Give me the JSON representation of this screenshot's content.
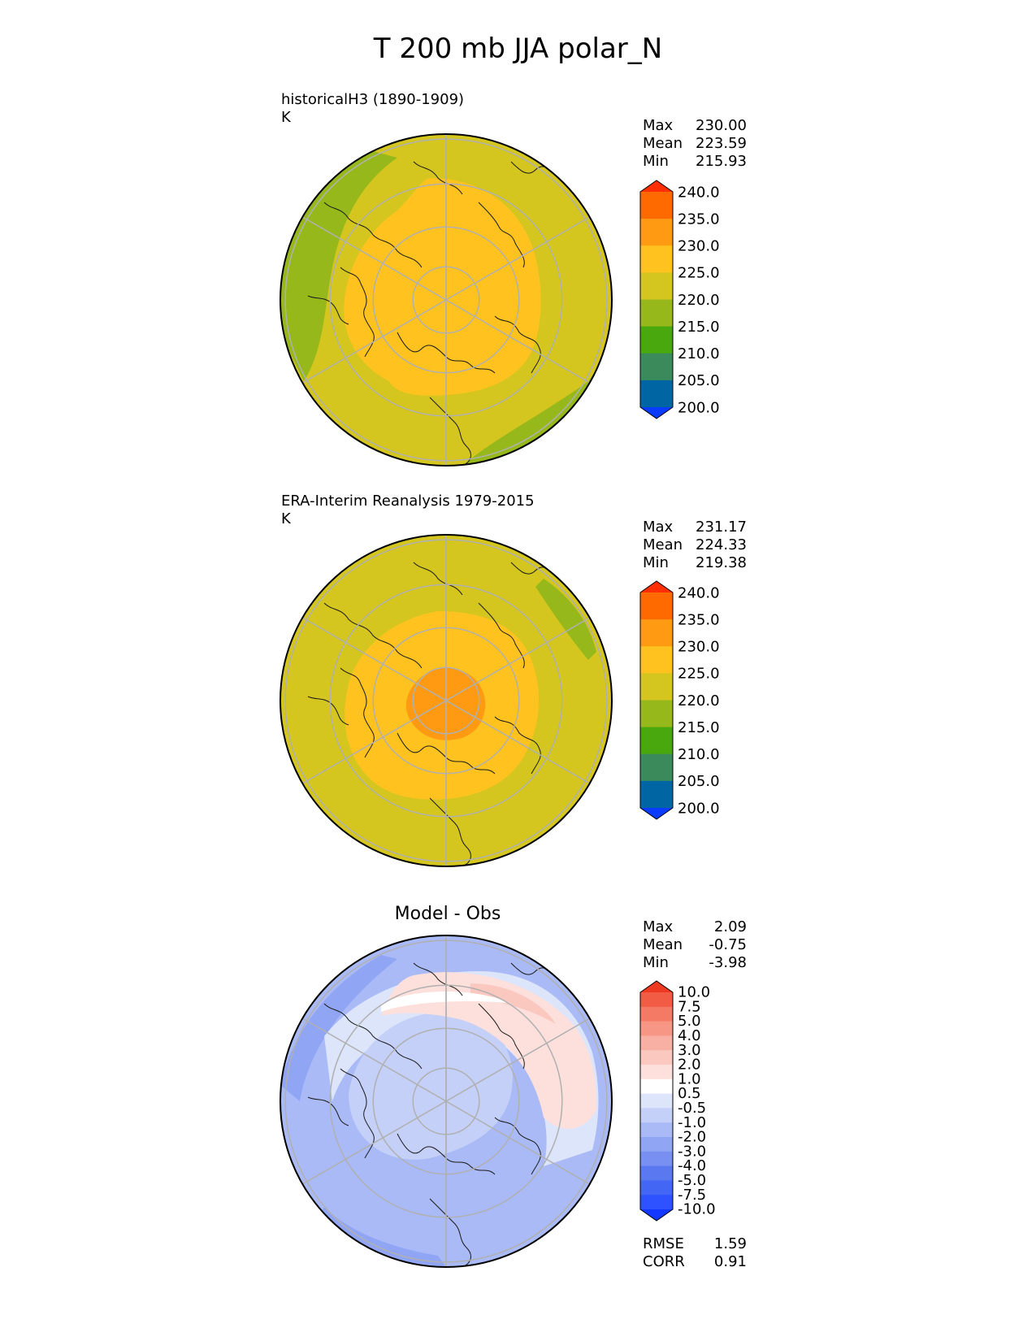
{
  "title": "T 200 mb JJA polar_N",
  "panels": [
    {
      "caption_line1": "historicalH3 (1890-1909)",
      "caption_line2": "K",
      "stats": [
        {
          "label": "Max",
          "value": "230.00"
        },
        {
          "label": "Mean",
          "value": "223.59"
        },
        {
          "label": "Min",
          "value": "215.93"
        }
      ]
    },
    {
      "caption_line1": "ERA-Interim Reanalysis 1979-2015",
      "caption_line2": "K",
      "stats": [
        {
          "label": "Max",
          "value": "231.17"
        },
        {
          "label": "Mean",
          "value": "224.33"
        },
        {
          "label": "Min",
          "value": "219.38"
        }
      ]
    },
    {
      "title": "Model - Obs",
      "stats": [
        {
          "label": "Max",
          "value": "2.09"
        },
        {
          "label": "Mean",
          "value": "-0.75"
        },
        {
          "label": "Min",
          "value": "-3.98"
        }
      ],
      "metrics": [
        {
          "label": "RMSE",
          "value": "1.59"
        },
        {
          "label": "CORR",
          "value": "0.91"
        }
      ]
    }
  ],
  "chart_data": [
    {
      "type": "heatmap",
      "projection": "north polar stereographic",
      "units": "K",
      "colorbar": {
        "levels": [
          "200.0",
          "205.0",
          "210.0",
          "215.0",
          "220.0",
          "225.0",
          "230.0",
          "235.0",
          "240.0"
        ],
        "colors": [
          "#0a3cff",
          "#0066a3",
          "#3a8a5c",
          "#4aa80f",
          "#96b81b",
          "#d4c61f",
          "#ffc21f",
          "#ff9a12",
          "#ff6a00",
          "#ff2e05"
        ],
        "extend": "both"
      },
      "field_summary": {
        "max": 230.0,
        "mean": 223.59,
        "min": 215.93
      }
    },
    {
      "type": "heatmap",
      "projection": "north polar stereographic",
      "units": "K",
      "colorbar": {
        "levels": [
          "200.0",
          "205.0",
          "210.0",
          "215.0",
          "220.0",
          "225.0",
          "230.0",
          "235.0",
          "240.0"
        ],
        "colors": [
          "#0a3cff",
          "#0066a3",
          "#3a8a5c",
          "#4aa80f",
          "#96b81b",
          "#d4c61f",
          "#ffc21f",
          "#ff9a12",
          "#ff6a00",
          "#ff2e05"
        ],
        "extend": "both"
      },
      "field_summary": {
        "max": 231.17,
        "mean": 224.33,
        "min": 219.38
      }
    },
    {
      "type": "heatmap",
      "projection": "north polar stereographic",
      "colorbar": {
        "levels": [
          "-10.0",
          "-7.5",
          "-5.0",
          "-4.0",
          "-3.0",
          "-2.0",
          "-1.0",
          "-0.5",
          "0.5",
          "1.0",
          "2.0",
          "3.0",
          "4.0",
          "5.0",
          "7.5",
          "10.0"
        ],
        "colors": [
          "#1438ff",
          "#2e52ff",
          "#4466f5",
          "#5a78f0",
          "#7890f2",
          "#90a6f4",
          "#a9baf6",
          "#c4d0f8",
          "#dde5fb",
          "#ffffff",
          "#fde0dc",
          "#fbc8c0",
          "#f9b0a4",
          "#f79684",
          "#f47a66",
          "#f25c44",
          "#ee3a20"
        ],
        "extend": "both"
      },
      "field_summary": {
        "max": 2.09,
        "mean": -0.75,
        "min": -3.98
      }
    }
  ]
}
